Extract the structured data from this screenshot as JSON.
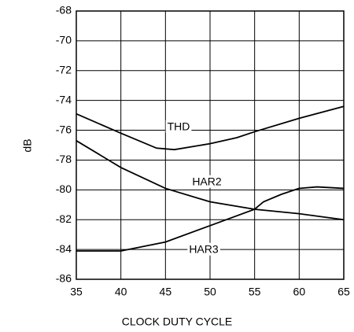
{
  "chart_data": {
    "type": "line",
    "xlabel": "CLOCK DUTY CYCLE",
    "ylabel": "dB",
    "xlim": [
      35,
      65
    ],
    "ylim": [
      -86,
      -68
    ],
    "xticks": [
      35,
      40,
      45,
      50,
      55,
      60,
      65
    ],
    "yticks": [
      -86,
      -84,
      -82,
      -80,
      -78,
      -76,
      -74,
      -72,
      -70,
      -68
    ],
    "grid": true,
    "series": [
      {
        "name": "THD",
        "color": "#000000",
        "x": [
          35,
          40,
          44,
          46,
          50,
          53,
          55,
          60,
          65
        ],
        "values": [
          -74.9,
          -76.2,
          -77.2,
          -77.3,
          -76.9,
          -76.5,
          -76.1,
          -75.2,
          -74.4
        ]
      },
      {
        "name": "HAR2",
        "color": "#000000",
        "x": [
          35,
          40,
          45,
          50,
          55,
          60,
          65
        ],
        "values": [
          -76.7,
          -78.5,
          -79.9,
          -80.8,
          -81.3,
          -81.6,
          -82.0
        ]
      },
      {
        "name": "HAR3",
        "color": "#000000",
        "x": [
          35,
          40,
          45,
          50,
          55,
          56,
          58,
          60,
          62,
          65
        ],
        "values": [
          -84.1,
          -84.1,
          -83.5,
          -82.4,
          -81.3,
          -80.8,
          -80.3,
          -79.9,
          -79.8,
          -79.9
        ]
      }
    ]
  }
}
